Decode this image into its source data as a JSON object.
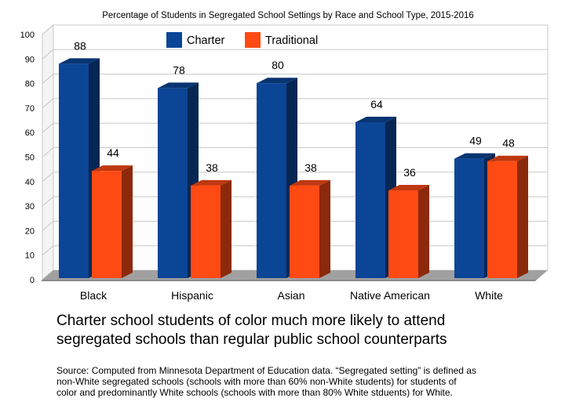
{
  "chart_data": {
    "type": "bar",
    "title": "Percentage of Students in Segregated School Settings by Race and School Type, 2015-2016",
    "categories": [
      "Black",
      "Hispanic",
      "Asian",
      "Native American",
      "White"
    ],
    "series": [
      {
        "name": "Charter",
        "values": [
          88,
          78,
          80,
          64,
          49
        ],
        "color": "#0b4596"
      },
      {
        "name": "Traditional",
        "values": [
          44,
          38,
          38,
          36,
          48
        ],
        "color": "#ff4a14"
      }
    ],
    "ylim": [
      0,
      100
    ],
    "yticks": [
      0,
      10,
      20,
      30,
      40,
      50,
      60,
      70,
      80,
      90,
      100
    ],
    "grid": true,
    "legend": "top"
  },
  "caption_lines": [
    "Charter school students of color much more likely to attend",
    "segregated schools than regular public school counterparts"
  ],
  "source_lines": [
    "Source: Computed from Minnesota Department of Education data. “Segregated setting” is defined as",
    "non-White segregated schools (schools with more than 60% non-White students) for students of",
    "color and predominantly White schools (schools with more than 80% White stduents) for White."
  ]
}
